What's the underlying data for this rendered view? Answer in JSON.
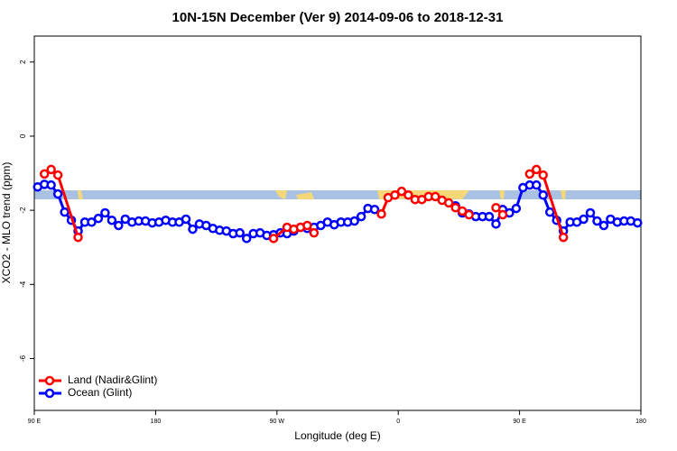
{
  "chart_data": {
    "type": "line",
    "title": "10N-15N December (Ver 9)   2014-09-06 to 2018-12-31",
    "xlabel": "Longitude (deg E)",
    "ylabel": "XCO2 - MLO trend (ppm)",
    "xlim": [
      90,
      540
    ],
    "xticks": [
      {
        "value": 90,
        "label": "90 E"
      },
      180,
      {
        "value": 270,
        "label": "90 W"
      },
      {
        "value": 360,
        "label": "0"
      },
      {
        "value": 450,
        "label": "90 E"
      },
      {
        "value": 540,
        "label": "180"
      }
    ],
    "ylim": [
      -7.4,
      2.7
    ],
    "yticks": [
      -6,
      -4,
      -2,
      0,
      2
    ],
    "legend": "bottom-left",
    "series": [
      {
        "name": "Land (Nadir&Glint)",
        "color": "#ff0000",
        "x": [
          97.5,
          102.5,
          107.5,
          122.5,
          null,
          267.5,
          277.5,
          282.5,
          287.5,
          292.5,
          297.5,
          null,
          347.5,
          352.5,
          357.5,
          362.5,
          367.5,
          372.5,
          377.5,
          382.5,
          387.5,
          392.5,
          397.5,
          402.5,
          407.5,
          412.5,
          null,
          432.5,
          437.5,
          null,
          457.5,
          462.5,
          467.5,
          482.5
        ],
        "values": [
          -1.02,
          -0.9,
          -1.05,
          -2.73,
          null,
          -2.76,
          -2.46,
          -2.51,
          -2.46,
          -2.41,
          -2.61,
          null,
          -2.1,
          -1.66,
          -1.59,
          -1.49,
          -1.59,
          -1.71,
          -1.71,
          -1.63,
          -1.63,
          -1.73,
          -1.8,
          -1.93,
          -2.02,
          -2.12,
          null,
          -1.93,
          -2.12,
          null,
          -1.02,
          -0.9,
          -1.05,
          -2.73
        ]
      },
      {
        "name": "Ocean (Glint)",
        "color": "#0000ff",
        "x": [
          92.5,
          97.5,
          102.5,
          107.5,
          112.5,
          117.5,
          122.5,
          127.5,
          132.5,
          137.5,
          142.5,
          147.5,
          152.5,
          157.5,
          162.5,
          167.5,
          172.5,
          177.5,
          182.5,
          187.5,
          192.5,
          197.5,
          202.5,
          207.5,
          212.5,
          217.5,
          222.5,
          227.5,
          232.5,
          237.5,
          242.5,
          247.5,
          252.5,
          257.5,
          262.5,
          267.5,
          272.5,
          277.5,
          282.5,
          287.5,
          292.5,
          297.5,
          302.5,
          307.5,
          312.5,
          317.5,
          322.5,
          327.5,
          332.5,
          337.5,
          342.5,
          347.5,
          352.5,
          357.5,
          362.5,
          367.5,
          372.5,
          377.5,
          382.5,
          387.5,
          392.5,
          397.5,
          402.5,
          407.5,
          412.5,
          417.5,
          422.5,
          427.5,
          432.5,
          437.5,
          442.5,
          447.5,
          452.5,
          457.5,
          462.5,
          467.5,
          472.5,
          477.5,
          482.5,
          487.5,
          492.5,
          497.5,
          502.5,
          507.5,
          512.5,
          517.5,
          522.5,
          527.5,
          532.5,
          537.5
        ],
        "values": [
          -1.37,
          -1.3,
          -1.32,
          -1.56,
          -2.05,
          -2.27,
          -2.56,
          -2.32,
          -2.32,
          -2.22,
          -2.07,
          -2.27,
          -2.41,
          -2.24,
          -2.32,
          -2.29,
          -2.29,
          -2.34,
          -2.32,
          -2.27,
          -2.32,
          -2.32,
          -2.24,
          -2.51,
          -2.37,
          -2.41,
          -2.49,
          -2.54,
          -2.56,
          -2.63,
          -2.61,
          -2.76,
          -2.63,
          -2.61,
          -2.68,
          -2.66,
          -2.61,
          -2.63,
          -2.56,
          -2.46,
          -2.49,
          -2.46,
          -2.41,
          -2.32,
          -2.39,
          -2.32,
          -2.32,
          -2.29,
          -2.17,
          -1.95,
          -1.98,
          null,
          null,
          null,
          null,
          null,
          null,
          null,
          null,
          null,
          null,
          null,
          -1.88,
          -2.07,
          -2.1,
          -2.17,
          -2.17,
          -2.17,
          -2.37,
          -1.98,
          -2.07,
          -1.95,
          -1.39,
          -1.32,
          -1.32,
          -1.59,
          -2.05,
          -2.27,
          -2.56,
          -2.32,
          -2.32,
          -2.24,
          -2.07,
          -2.29,
          -2.41,
          -2.24,
          -2.32,
          -2.29,
          -2.29,
          -2.34
        ]
      }
    ]
  }
}
